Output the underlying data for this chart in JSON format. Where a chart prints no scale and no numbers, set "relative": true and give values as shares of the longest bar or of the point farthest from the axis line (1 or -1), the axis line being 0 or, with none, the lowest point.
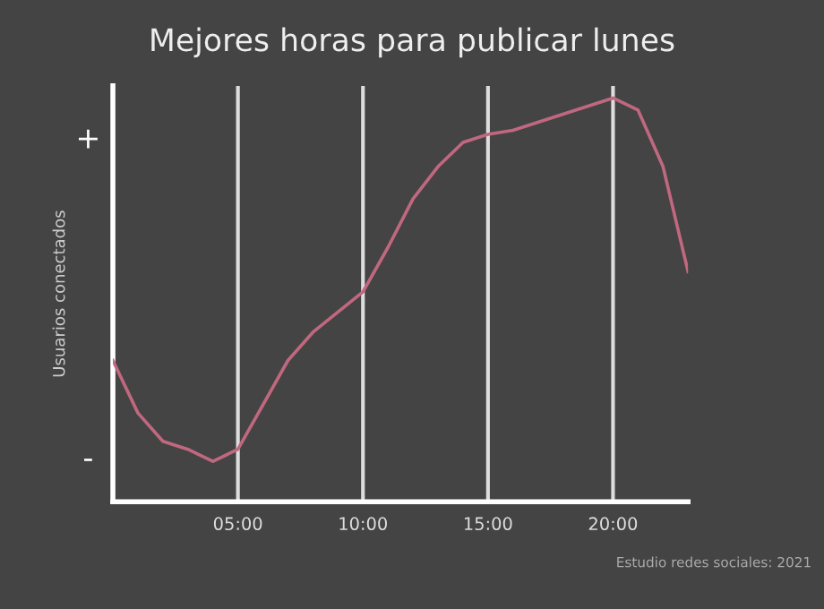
{
  "chart_data": {
    "type": "line",
    "title": "Mejores horas para publicar lunes",
    "ylabel": "Usuarios conectados",
    "x": [
      0,
      1,
      2,
      3,
      4,
      5,
      6,
      7,
      8,
      9,
      10,
      11,
      12,
      13,
      14,
      15,
      16,
      17,
      18,
      19,
      20,
      21,
      22,
      23
    ],
    "series": [
      {
        "color": "#c0687f",
        "values": [
          0.35,
          0.22,
          0.15,
          0.13,
          0.1,
          0.13,
          0.24,
          0.35,
          0.42,
          0.47,
          0.52,
          0.63,
          0.75,
          0.83,
          0.89,
          0.91,
          0.92,
          0.94,
          0.96,
          0.98,
          1.0,
          0.97,
          0.83,
          0.57
        ]
      }
    ],
    "relative": true,
    "xlim": [
      0,
      23
    ],
    "xticks": [
      {
        "value": 5,
        "label": "05:00"
      },
      {
        "value": 10,
        "label": "10:00"
      },
      {
        "value": 15,
        "label": "15:00"
      },
      {
        "value": 20,
        "label": "20:00"
      }
    ],
    "grid": "x",
    "legend": false,
    "marker": "none",
    "line_style": "solid",
    "annotations": [
      "+",
      "-",
      "Estudio redes sociales: 2021"
    ]
  }
}
